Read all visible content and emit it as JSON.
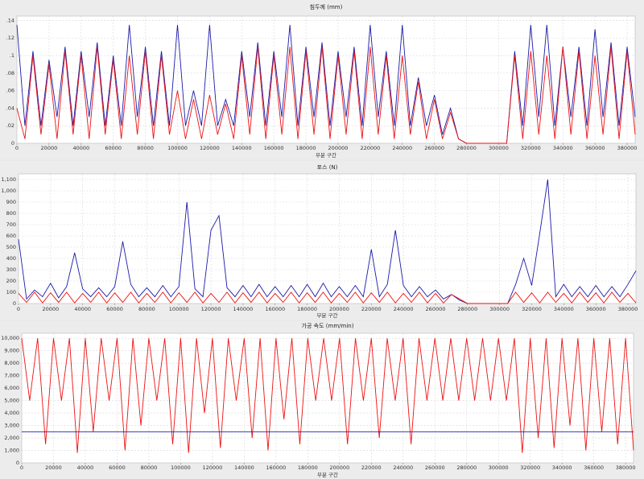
{
  "chart_data": [
    {
      "type": "line",
      "title": "침두께 (mm)",
      "x_label": "부분 구간",
      "x": [
        0,
        5000,
        10000,
        15000,
        20000,
        25000,
        30000,
        35000,
        40000,
        45000,
        50000,
        55000,
        60000,
        65000,
        70000,
        75000,
        80000,
        85000,
        90000,
        95000,
        100000,
        105000,
        110000,
        115000,
        120000,
        125000,
        130000,
        135000,
        140000,
        145000,
        150000,
        155000,
        160000,
        165000,
        170000,
        175000,
        180000,
        185000,
        190000,
        195000,
        200000,
        205000,
        210000,
        215000,
        220000,
        225000,
        230000,
        235000,
        240000,
        245000,
        250000,
        255000,
        260000,
        265000,
        270000,
        275000,
        280000,
        285000,
        290000,
        295000,
        300000,
        305000,
        310000,
        315000,
        320000,
        325000,
        330000,
        335000,
        340000,
        345000,
        350000,
        355000,
        360000,
        365000,
        370000,
        375000,
        380000,
        385000
      ],
      "xlim": [
        0,
        385000
      ],
      "xticks": [
        0,
        20000,
        40000,
        60000,
        80000,
        100000,
        120000,
        140000,
        160000,
        180000,
        200000,
        220000,
        240000,
        260000,
        280000,
        300000,
        320000,
        340000,
        360000,
        380000
      ],
      "ylim": [
        0,
        0.145
      ],
      "yticks": [
        0,
        {
          "value": 0.02,
          "label": ".02"
        },
        {
          "value": 0.04,
          "label": ".04"
        },
        {
          "value": 0.06,
          "label": ".06"
        },
        {
          "value": 0.08,
          "label": ".08"
        },
        {
          "value": 0.1,
          "label": ".1"
        },
        {
          "value": 0.12,
          "label": ".12"
        },
        {
          "value": 0.14,
          "label": ".14"
        }
      ],
      "grid": true,
      "series": [
        {
          "color": "#1a1aa8",
          "values": [
            0.135,
            0.02,
            0.105,
            0.02,
            0.095,
            0.03,
            0.11,
            0.02,
            0.105,
            0.03,
            0.115,
            0.02,
            0.1,
            0.02,
            0.135,
            0.03,
            0.11,
            0.02,
            0.105,
            0.02,
            0.135,
            0.02,
            0.06,
            0.02,
            0.135,
            0.02,
            0.05,
            0.02,
            0.105,
            0.03,
            0.115,
            0.02,
            0.105,
            0.03,
            0.135,
            0.02,
            0.11,
            0.03,
            0.115,
            0.02,
            0.105,
            0.03,
            0.11,
            0.02,
            0.135,
            0.03,
            0.105,
            0.02,
            0.135,
            0.02,
            0.075,
            0.02,
            0.055,
            0.01,
            0.04,
            0.005,
            0,
            0,
            0,
            0,
            0,
            0,
            0.105,
            0.02,
            0.135,
            0.03,
            0.135,
            0.02,
            0.11,
            0.03,
            0.11,
            0.02,
            0.13,
            0.03,
            0.115,
            0.02,
            0.11,
            0.03
          ]
        },
        {
          "color": "#ee1111",
          "values": [
            0.04,
            0.005,
            0.1,
            0.01,
            0.09,
            0.005,
            0.105,
            0.01,
            0.1,
            0.005,
            0.11,
            0.01,
            0.095,
            0.005,
            0.1,
            0.01,
            0.105,
            0.005,
            0.1,
            0.01,
            0.06,
            0.005,
            0.05,
            0.005,
            0.055,
            0.01,
            0.045,
            0.005,
            0.1,
            0.01,
            0.11,
            0.005,
            0.1,
            0.01,
            0.11,
            0.005,
            0.105,
            0.01,
            0.11,
            0.005,
            0.1,
            0.01,
            0.105,
            0.005,
            0.11,
            0.01,
            0.1,
            0.005,
            0.1,
            0.01,
            0.07,
            0.005,
            0.05,
            0.005,
            0.035,
            0.005,
            0,
            0,
            0,
            0,
            0,
            0,
            0.1,
            0.005,
            0.105,
            0.01,
            0.1,
            0.005,
            0.11,
            0.01,
            0.105,
            0.005,
            0.1,
            0.01,
            0.11,
            0.005,
            0.105,
            0.01
          ]
        }
      ]
    },
    {
      "type": "line",
      "title": "포스 (N)",
      "x_label": "부분 구간",
      "x": [
        0,
        5000,
        10000,
        15000,
        20000,
        25000,
        30000,
        35000,
        40000,
        45000,
        50000,
        55000,
        60000,
        65000,
        70000,
        75000,
        80000,
        85000,
        90000,
        95000,
        100000,
        105000,
        110000,
        115000,
        120000,
        125000,
        130000,
        135000,
        140000,
        145000,
        150000,
        155000,
        160000,
        165000,
        170000,
        175000,
        180000,
        185000,
        190000,
        195000,
        200000,
        205000,
        210000,
        215000,
        220000,
        225000,
        230000,
        235000,
        240000,
        245000,
        250000,
        255000,
        260000,
        265000,
        270000,
        275000,
        280000,
        285000,
        290000,
        295000,
        300000,
        305000,
        310000,
        315000,
        320000,
        325000,
        330000,
        335000,
        340000,
        345000,
        350000,
        355000,
        360000,
        365000,
        370000,
        375000,
        380000,
        385000
      ],
      "xlim": [
        0,
        385000
      ],
      "xticks": [
        0,
        20000,
        40000,
        60000,
        80000,
        100000,
        120000,
        140000,
        160000,
        180000,
        200000,
        220000,
        240000,
        260000,
        280000,
        300000,
        320000,
        340000,
        360000,
        380000
      ],
      "ylim": [
        0,
        1150
      ],
      "yticks": [
        0,
        100,
        200,
        300,
        400,
        500,
        600,
        700,
        800,
        900,
        {
          "value": 1000,
          "label": "1,000"
        },
        {
          "value": 1100,
          "label": "1,100"
        }
      ],
      "grid": true,
      "series": [
        {
          "color": "#1a1aa8",
          "values": [
            570,
            40,
            120,
            60,
            180,
            50,
            150,
            450,
            130,
            60,
            140,
            60,
            150,
            550,
            170,
            60,
            140,
            60,
            160,
            60,
            150,
            900,
            130,
            60,
            650,
            780,
            140,
            60,
            160,
            60,
            170,
            60,
            150,
            60,
            160,
            60,
            170,
            60,
            180,
            60,
            150,
            60,
            160,
            60,
            480,
            60,
            170,
            650,
            160,
            60,
            150,
            60,
            120,
            40,
            80,
            30,
            0,
            0,
            0,
            0,
            0,
            0,
            170,
            400,
            160,
            620,
            1100,
            60,
            170,
            60,
            150,
            60,
            160,
            60,
            150,
            60,
            170,
            290
          ]
        },
        {
          "color": "#ee1111",
          "values": [
            90,
            10,
            100,
            5,
            95,
            10,
            100,
            5,
            90,
            10,
            100,
            5,
            95,
            10,
            100,
            5,
            90,
            10,
            100,
            5,
            95,
            10,
            100,
            5,
            90,
            10,
            100,
            5,
            95,
            10,
            100,
            5,
            90,
            10,
            100,
            5,
            95,
            10,
            100,
            5,
            90,
            10,
            100,
            5,
            95,
            10,
            100,
            5,
            90,
            10,
            100,
            5,
            90,
            5,
            80,
            40,
            0,
            0,
            0,
            0,
            0,
            0,
            100,
            10,
            95,
            5,
            100,
            10,
            90,
            5,
            100,
            10,
            95,
            5,
            100,
            10,
            90,
            5
          ]
        }
      ]
    },
    {
      "type": "line",
      "title": "가공 속도 (mm/min)",
      "x_label": "부분 구간",
      "x": [
        0,
        5000,
        10000,
        15000,
        20000,
        25000,
        30000,
        35000,
        40000,
        45000,
        50000,
        55000,
        60000,
        65000,
        70000,
        75000,
        80000,
        85000,
        90000,
        95000,
        100000,
        105000,
        110000,
        115000,
        120000,
        125000,
        130000,
        135000,
        140000,
        145000,
        150000,
        155000,
        160000,
        165000,
        170000,
        175000,
        180000,
        185000,
        190000,
        195000,
        200000,
        205000,
        210000,
        215000,
        220000,
        225000,
        230000,
        235000,
        240000,
        245000,
        250000,
        255000,
        260000,
        265000,
        270000,
        275000,
        280000,
        285000,
        290000,
        295000,
        300000,
        305000,
        310000,
        315000,
        320000,
        325000,
        330000,
        335000,
        340000,
        345000,
        350000,
        355000,
        360000,
        365000,
        370000,
        375000,
        380000,
        385000
      ],
      "xlim": [
        0,
        385000
      ],
      "xticks": [
        0,
        20000,
        40000,
        60000,
        80000,
        100000,
        120000,
        140000,
        160000,
        180000,
        200000,
        220000,
        240000,
        260000,
        280000,
        300000,
        320000,
        340000,
        360000,
        380000
      ],
      "ylim": [
        0,
        10400
      ],
      "yticks": [
        0,
        {
          "value": 1000,
          "label": "1,000"
        },
        {
          "value": 2000,
          "label": "2,000"
        },
        {
          "value": 3000,
          "label": "3,000"
        },
        {
          "value": 4000,
          "label": "4,000"
        },
        {
          "value": 5000,
          "label": "5,000"
        },
        {
          "value": 6000,
          "label": "6,000"
        },
        {
          "value": 7000,
          "label": "7,000"
        },
        {
          "value": 8000,
          "label": "8,000"
        },
        {
          "value": 9000,
          "label": "9,000"
        },
        {
          "value": 10000,
          "label": "10,000"
        }
      ],
      "grid": true,
      "series": [
        {
          "color": "#ee1111",
          "values": [
            10000,
            5000,
            10000,
            1500,
            10000,
            5000,
            10000,
            800,
            10000,
            2500,
            10000,
            5000,
            10000,
            1000,
            10000,
            3000,
            10000,
            5000,
            10000,
            1500,
            10000,
            800,
            10000,
            4000,
            10000,
            1200,
            10000,
            5000,
            10000,
            2000,
            10000,
            1000,
            10000,
            3500,
            10000,
            1500,
            10000,
            5000,
            10000,
            5000,
            10000,
            1500,
            10000,
            5000,
            10000,
            2000,
            10000,
            5000,
            10000,
            1500,
            10000,
            5000,
            10000,
            5000,
            10000,
            5000,
            10000,
            5000,
            10000,
            5000,
            10000,
            5000,
            10000,
            800,
            10000,
            2000,
            10000,
            1200,
            10000,
            3000,
            10000,
            1000,
            10000,
            2500,
            10000,
            1500,
            10000,
            1000
          ]
        },
        {
          "color": "#1a1aa8",
          "values": [
            2500,
            2500,
            2500,
            2500,
            2500,
            2500,
            2500,
            2500,
            2500,
            2500,
            2500,
            2500,
            2500,
            2500,
            2500,
            2500,
            2500,
            2500,
            2500,
            2500,
            2500,
            2500,
            2500,
            2500,
            2500,
            2500,
            2500,
            2500,
            2500,
            2500,
            2500,
            2500,
            2500,
            2500,
            2500,
            2500,
            2500,
            2500,
            2500,
            2500,
            2500,
            2500,
            2500,
            2500,
            2500,
            2500,
            2500,
            2500,
            2500,
            2500,
            2500,
            2500,
            2500,
            2500,
            2500,
            2500,
            2500,
            2500,
            2500,
            2500,
            2500,
            2500,
            2500,
            2500,
            2500,
            2500,
            2500,
            2500,
            2500,
            2500,
            2500,
            2500,
            2500,
            2500,
            2500,
            2500,
            2500,
            2500
          ]
        }
      ]
    }
  ]
}
